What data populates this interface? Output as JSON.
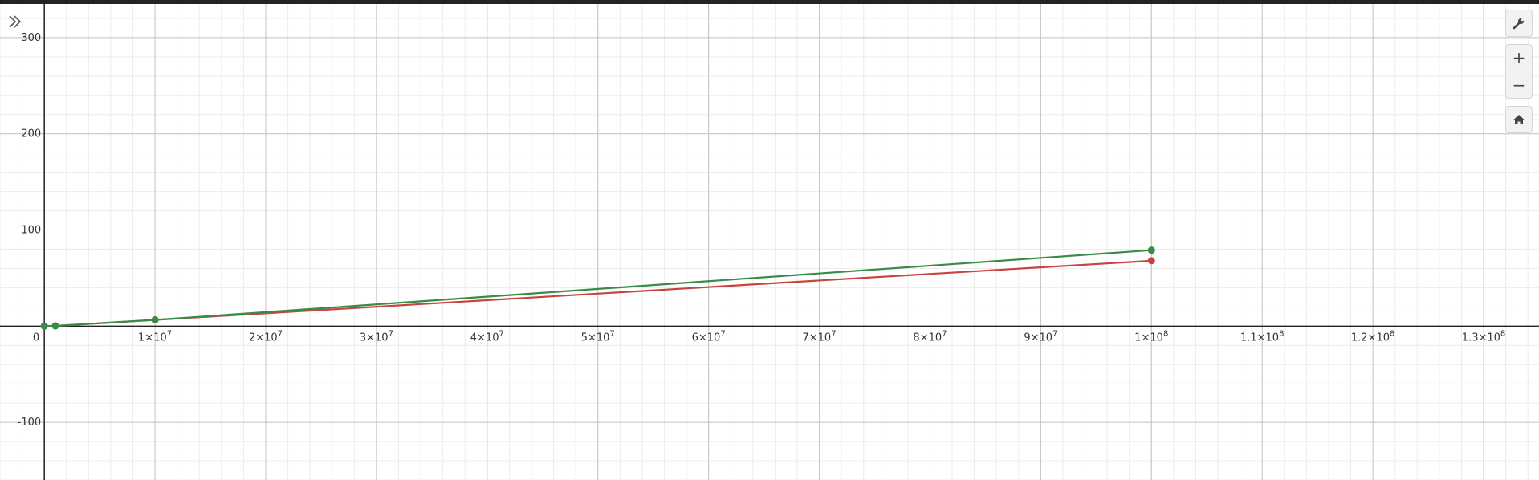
{
  "toolbar": {
    "expand_icon": "double-chevron-right-icon",
    "settings_icon": "wrench-icon",
    "zoom_in_icon": "plus-icon",
    "zoom_out_icon": "minus-icon",
    "home_icon": "home-icon"
  },
  "chart_data": {
    "type": "line",
    "xlim": [
      -4000000,
      135000000
    ],
    "ylim": [
      -160,
      335
    ],
    "grid": true,
    "x_ticks": [
      {
        "value": 0,
        "label": "0",
        "sup": ""
      },
      {
        "value": 10000000,
        "label": "1×10",
        "sup": "7"
      },
      {
        "value": 20000000,
        "label": "2×10",
        "sup": "7"
      },
      {
        "value": 30000000,
        "label": "3×10",
        "sup": "7"
      },
      {
        "value": 40000000,
        "label": "4×10",
        "sup": "7"
      },
      {
        "value": 50000000,
        "label": "5×10",
        "sup": "7"
      },
      {
        "value": 60000000,
        "label": "6×10",
        "sup": "7"
      },
      {
        "value": 70000000,
        "label": "7×10",
        "sup": "7"
      },
      {
        "value": 80000000,
        "label": "8×10",
        "sup": "7"
      },
      {
        "value": 90000000,
        "label": "9×10",
        "sup": "7"
      },
      {
        "value": 100000000,
        "label": "1×10",
        "sup": "8"
      },
      {
        "value": 110000000,
        "label": "1.1×10",
        "sup": "8"
      },
      {
        "value": 120000000,
        "label": "1.2×10",
        "sup": "8"
      },
      {
        "value": 130000000,
        "label": "1.3×10",
        "sup": "8"
      }
    ],
    "y_ticks": [
      {
        "value": 300,
        "label": "300"
      },
      {
        "value": 200,
        "label": "200"
      },
      {
        "value": 100,
        "label": "100"
      },
      {
        "value": -100,
        "label": "-100"
      }
    ],
    "series": [
      {
        "color": "#c74440",
        "x": [
          0,
          1000000,
          10000000,
          100000000
        ],
        "y": [
          0,
          0.3,
          6.5,
          68
        ]
      },
      {
        "color": "#388c46",
        "x": [
          0,
          1000000,
          10000000,
          100000000
        ],
        "y": [
          0,
          0.3,
          6.5,
          79
        ]
      }
    ]
  }
}
